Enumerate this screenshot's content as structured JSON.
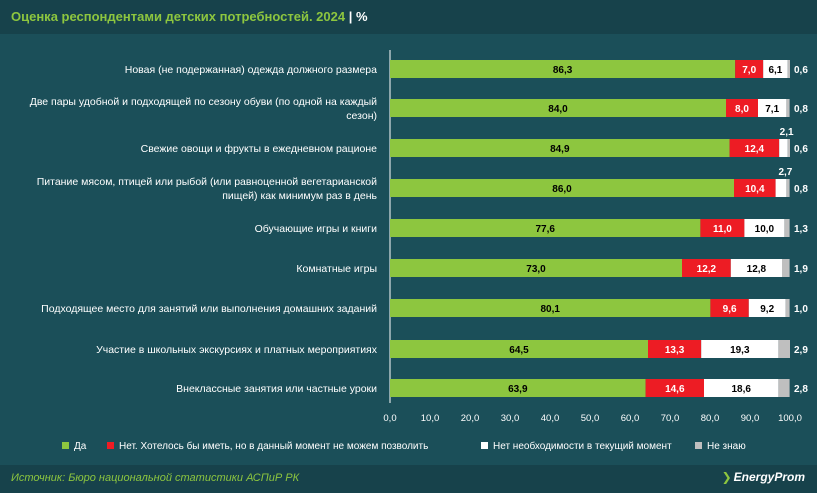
{
  "title": {
    "text": "Оценка респондентами детских потребностей. 2024",
    "separator": "|",
    "unit": "%"
  },
  "footer": {
    "source": "Источник: Бюро национальной статистики АСПиР РК",
    "logo": "EnergyProm"
  },
  "colors": {
    "yes": "#8dc63f",
    "no_afford": "#ed1c24",
    "no_need": "#ffffff",
    "dont_know": "#bfbfbf",
    "background": "#1b4f59",
    "text": "#ffffff",
    "accent": "#8dc63f"
  },
  "chart_data": {
    "type": "bar",
    "orientation": "horizontal",
    "stacked": true,
    "title": "Оценка респондентами детских потребностей. 2024",
    "xlim": [
      0,
      100
    ],
    "x_ticks": [
      "0,0",
      "10,0",
      "20,0",
      "30,0",
      "40,0",
      "50,0",
      "60,0",
      "70,0",
      "80,0",
      "90,0",
      "100,0"
    ],
    "legend_position": "bottom",
    "categories": [
      "Новая (не подержанная) одежда должного размера",
      "Две пары удобной и подходящей по сезону обуви (по одной на каждый сезон)",
      "Свежие овощи и фрукты в ежедневном рационе",
      "Питание мясом, птицей или рыбой (или равноценной вегетарианской пищей) как минимум раз в день",
      "Обучающие игры и книги",
      "Комнатные игры",
      "Подходящее место для занятий или выполнения домашних заданий",
      "Участие в школьных экскурсиях и платных мероприятиях",
      "Внеклассные занятия или частные уроки"
    ],
    "category_lines": [
      [
        "Новая (не подержанная) одежда должного размера"
      ],
      [
        "Две пары удобной и подходящей по сезону обуви (по одной на каждый",
        "сезон)"
      ],
      [
        "Свежие овощи и фрукты в ежедневном рационе"
      ],
      [
        "Питание мясом, птицей или рыбой (или равноценной вегетарианской",
        "пищей) как минимум раз в день"
      ],
      [
        "Обучающие игры и книги"
      ],
      [
        "Комнатные игры"
      ],
      [
        "Подходящее место для занятий или выполнения домашних заданий"
      ],
      [
        "Участие в школьных экскурсиях и платных мероприятиях"
      ],
      [
        "Внеклассные занятия или частные уроки"
      ]
    ],
    "series": [
      {
        "name": "Да",
        "key": "yes",
        "values": [
          86.3,
          84.0,
          84.9,
          86.0,
          77.6,
          73.0,
          80.1,
          64.5,
          63.9
        ],
        "labels": [
          "86,3",
          "84,0",
          "84,9",
          "86,0",
          "77,6",
          "73,0",
          "80,1",
          "64,5",
          "63,9"
        ]
      },
      {
        "name": "Нет. Хотелось бы иметь, но в данный момент не можем позволить",
        "key": "no_afford",
        "values": [
          7.0,
          8.0,
          12.4,
          10.4,
          11.0,
          12.2,
          9.6,
          13.3,
          14.6
        ],
        "labels": [
          "7,0",
          "8,0",
          "12,4",
          "10,4",
          "11,0",
          "12,2",
          "9,6",
          "13,3",
          "14,6"
        ]
      },
      {
        "name": "Нет необходимости в текущий момент",
        "key": "no_need",
        "values": [
          6.1,
          7.1,
          2.1,
          2.7,
          10.0,
          12.8,
          9.2,
          19.3,
          18.6
        ],
        "labels": [
          "6,1",
          "7,1",
          "2,1",
          "2,7",
          "10,0",
          "12,8",
          "9,2",
          "19,3",
          "18,6"
        ]
      },
      {
        "name": "Не знаю",
        "key": "dont_know",
        "values": [
          0.6,
          0.8,
          0.6,
          0.8,
          1.3,
          1.9,
          1.0,
          2.9,
          2.8
        ],
        "labels": [
          "0,6",
          "0,8",
          "0,6",
          "0,8",
          "1,3",
          "1,9",
          "1,0",
          "2,9",
          "2,8"
        ]
      }
    ]
  }
}
